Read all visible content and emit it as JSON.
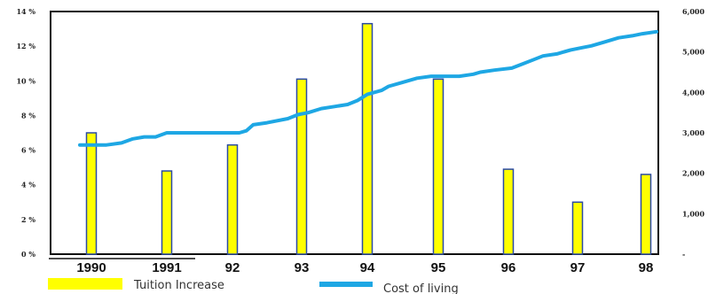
{
  "chart_data": {
    "type": "bar+line",
    "categories": [
      "1990",
      "1991",
      "92",
      "93",
      "94",
      "95",
      "96",
      "97",
      "98"
    ],
    "series": [
      {
        "name": "Tuition Increase",
        "type": "bar",
        "axis": "left",
        "values": [
          7.0,
          4.8,
          6.3,
          10.1,
          13.3,
          10.1,
          4.9,
          3.0,
          4.6
        ],
        "color": "#ffff00",
        "edge_color": "#2b4aa3"
      },
      {
        "name": "Cost of living",
        "type": "line",
        "axis": "right",
        "color": "#1ea7e4",
        "x": [
          0.0,
          0.2,
          0.4,
          0.55,
          0.7,
          0.85,
          1.0,
          1.3,
          1.6,
          1.9,
          2.1,
          2.2,
          2.3,
          2.5,
          2.8,
          2.95,
          3.1,
          3.3,
          3.5,
          3.7,
          3.85,
          4.0,
          4.1,
          4.2,
          4.3,
          4.5,
          4.7,
          4.9,
          5.0,
          5.3,
          5.5,
          5.6,
          5.8,
          6.05,
          6.2,
          6.35,
          6.5,
          6.7,
          6.9,
          7.05,
          7.2,
          7.4,
          7.6,
          7.8,
          7.95,
          8.0
        ],
        "values": [
          2.7,
          2.7,
          2.75,
          2.85,
          2.9,
          2.9,
          3.0,
          3.0,
          3.0,
          3.0,
          3.0,
          3.05,
          3.2,
          3.25,
          3.35,
          3.45,
          3.5,
          3.6,
          3.65,
          3.7,
          3.8,
          3.95,
          4.0,
          4.05,
          4.15,
          4.25,
          4.35,
          4.4,
          4.4,
          4.4,
          4.45,
          4.5,
          4.55,
          4.6,
          4.7,
          4.8,
          4.9,
          4.95,
          5.05,
          5.1,
          5.15,
          5.25,
          5.35,
          5.4,
          5.45,
          5.5
        ]
      }
    ],
    "left_axis": {
      "ylim": [
        0,
        14
      ],
      "ticks": [
        "0 %",
        "2 %",
        "4 %",
        "6 %",
        "8 %",
        "10 %",
        "12 %",
        "14 %"
      ]
    },
    "right_axis": {
      "ylim": [
        0,
        6
      ],
      "ticks": [
        "-",
        "1,000",
        "2,000",
        "3,000",
        "4,000",
        "5,000",
        "6,000"
      ]
    },
    "legend": {
      "placement": "bottom",
      "items": [
        {
          "label": "Tuition Increase",
          "color": "#ffff00",
          "shape": "rect"
        },
        {
          "label": "Cost of living",
          "color": "#1ea7e4",
          "shape": "line"
        }
      ]
    },
    "grid": false,
    "title": "",
    "xlabel": "",
    "ylabel": ""
  }
}
